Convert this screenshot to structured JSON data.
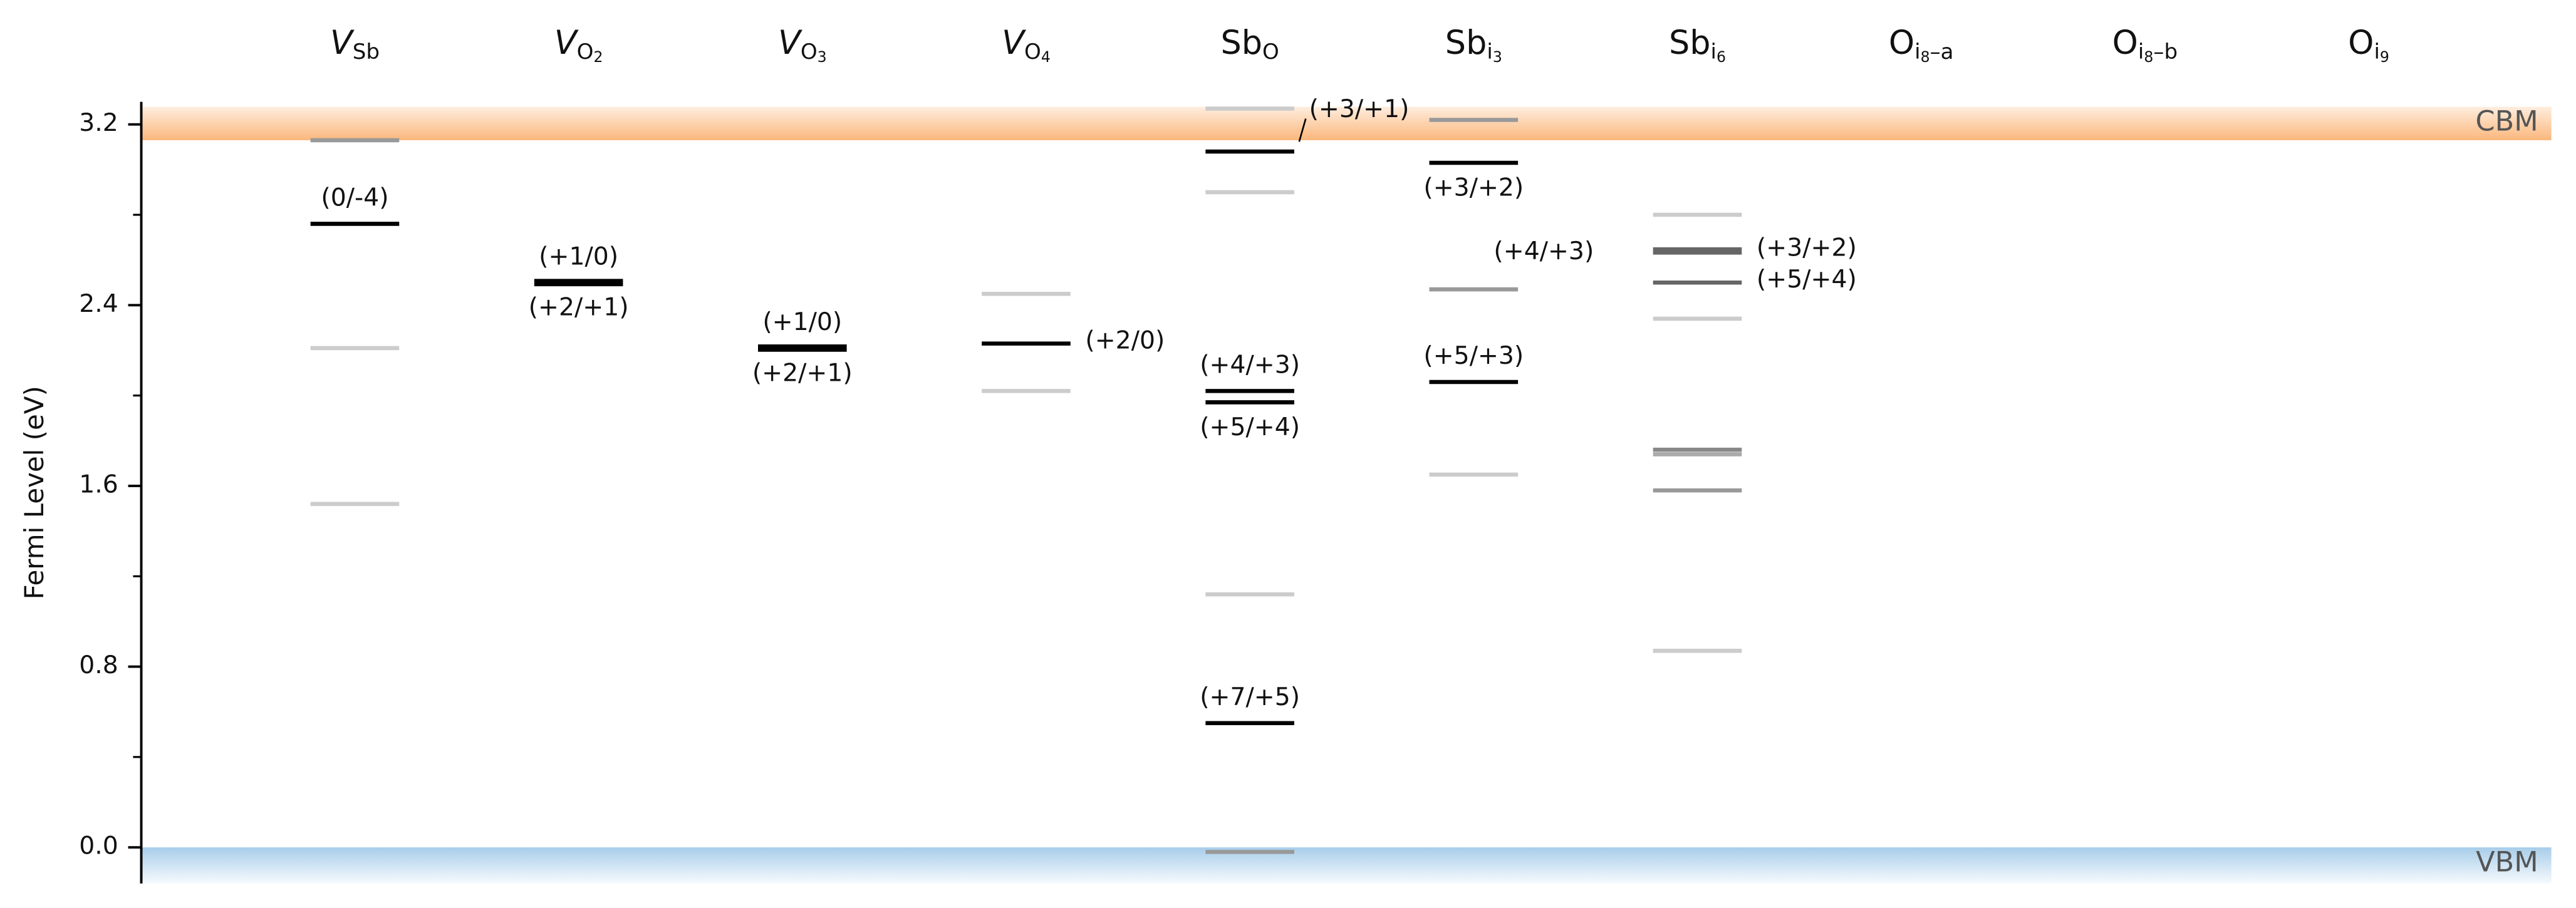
{
  "chart_data": {
    "type": "levels",
    "y_label": "Fermi Level (eV)",
    "ylim": [
      -0.16,
      3.3
    ],
    "yticks": [
      0.0,
      0.8,
      1.6,
      2.4,
      3.2
    ],
    "yminor_ticks": [
      0.4,
      1.2,
      2.0,
      2.8
    ],
    "ytick_labels": [
      "0.0",
      "0.8",
      "1.6",
      "2.4",
      "3.2"
    ],
    "cbm": 3.13,
    "cbm_label": "CBM",
    "cbm_color": "#fbb77c",
    "vbm": 0.0,
    "vbm_label": "VBM",
    "vbm_color": "#a8cdea",
    "defects": [
      {
        "base": "V",
        "italic": true,
        "sub": "Sb",
        "levels": [
          {
            "value": 3.13,
            "color": "#999999"
          },
          {
            "value": 2.76,
            "color": "#000000",
            "label": "(0/-4)",
            "label_pos": "above"
          },
          {
            "value": 2.21,
            "color": "#cccccc"
          },
          {
            "value": 1.52,
            "color": "#cccccc"
          }
        ]
      },
      {
        "base": "V",
        "italic": true,
        "sub": "O",
        "subsub": "2",
        "levels": [
          {
            "value": 2.5,
            "color": "#000000",
            "thick": true,
            "label": "(+1/0)",
            "label_pos": "above",
            "label2": "(+2/+1)"
          }
        ]
      },
      {
        "base": "V",
        "italic": true,
        "sub": "O",
        "subsub": "3",
        "levels": [
          {
            "value": 2.21,
            "color": "#000000",
            "thick": true,
            "label": "(+1/0)",
            "label_pos": "above",
            "label2": "(+2/+1)"
          }
        ]
      },
      {
        "base": "V",
        "italic": true,
        "sub": "O",
        "subsub": "4",
        "levels": [
          {
            "value": 2.45,
            "color": "#cccccc"
          },
          {
            "value": 2.23,
            "color": "#000000",
            "label": "(+2/0)",
            "label_pos": "right"
          },
          {
            "value": 2.02,
            "color": "#cccccc"
          }
        ]
      },
      {
        "base": "Sb",
        "italic": false,
        "sub": "O",
        "levels": [
          {
            "value": 3.27,
            "color": "#cccccc"
          },
          {
            "value": 3.08,
            "color": "#000000",
            "label": "(+3/+1)",
            "label_pos": "right-up"
          },
          {
            "value": 2.9,
            "color": "#cccccc"
          },
          {
            "value": 2.02,
            "color": "#000000",
            "label": "(+4/+3)",
            "label_pos": "above"
          },
          {
            "value": 1.97,
            "color": "#000000",
            "label": "(+5/+4)",
            "label_pos": "below"
          },
          {
            "value": 1.12,
            "color": "#cccccc"
          },
          {
            "value": 0.55,
            "color": "#000000",
            "label": "(+7/+5)",
            "label_pos": "above"
          },
          {
            "value": -0.02,
            "color": "#999999"
          }
        ]
      },
      {
        "base": "Sb",
        "italic": false,
        "sub": "i",
        "subsub": "3",
        "levels": [
          {
            "value": 3.22,
            "color": "#999999"
          },
          {
            "value": 3.03,
            "color": "#000000",
            "label": "(+3/+2)",
            "label_pos": "below"
          },
          {
            "value": 2.47,
            "color": "#999999"
          },
          {
            "value": 2.06,
            "color": "#000000",
            "label": "(+5/+3)",
            "label_pos": "above"
          },
          {
            "value": 1.65,
            "color": "#cccccc"
          }
        ]
      },
      {
        "base": "Sb",
        "italic": false,
        "sub": "i",
        "subsub": "6",
        "levels": [
          {
            "value": 2.8,
            "color": "#cccccc"
          },
          {
            "value": 2.64,
            "color": "#666666",
            "thick": true,
            "label": "(+3/+2)",
            "label_pos": "right",
            "label2": "(+4/+3)"
          },
          {
            "value": 2.5,
            "color": "#666666",
            "label": "(+5/+4)",
            "label_pos": "right"
          },
          {
            "value": 2.34,
            "color": "#cccccc"
          },
          {
            "value": 1.76,
            "color": "#888888"
          },
          {
            "value": 1.74,
            "color": "#aaaaaa"
          },
          {
            "value": 1.58,
            "color": "#999999"
          },
          {
            "value": 0.87,
            "color": "#cccccc"
          }
        ]
      },
      {
        "base": "O",
        "italic": false,
        "sub": "i",
        "subsub": "8",
        "subtail": "–a",
        "levels": []
      },
      {
        "base": "O",
        "italic": false,
        "sub": "i",
        "subsub": "8",
        "subtail": "–b",
        "levels": []
      },
      {
        "base": "O",
        "italic": false,
        "sub": "i",
        "subsub": "9",
        "levels": []
      }
    ]
  }
}
